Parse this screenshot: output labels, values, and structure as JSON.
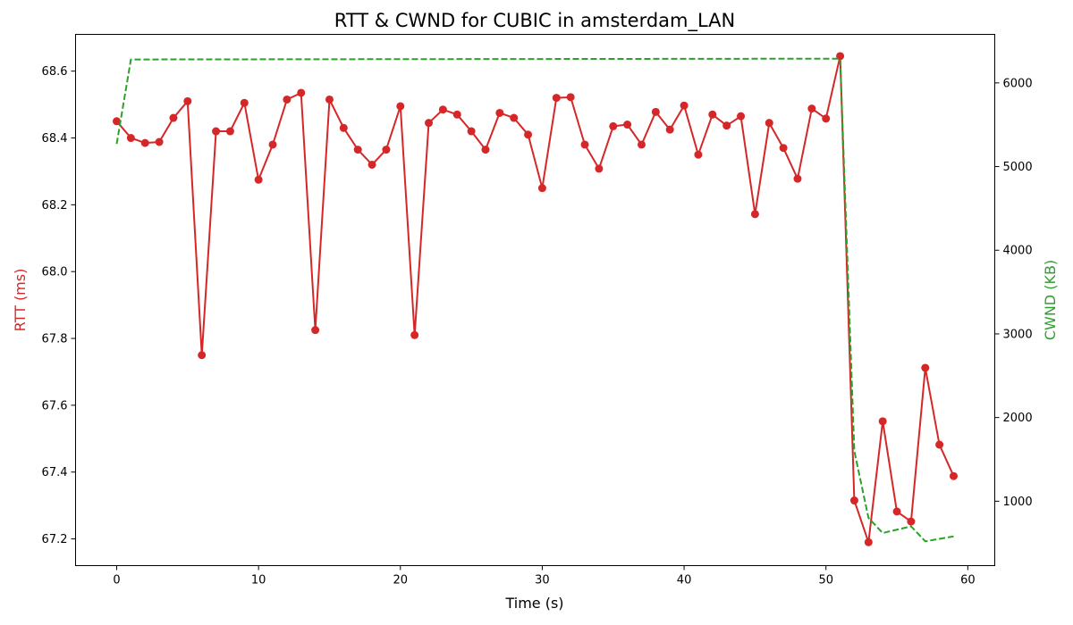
{
  "chart_data": {
    "type": "line",
    "title": "RTT & CWND for CUBIC in amsterdam_LAN",
    "xlabel": "Time (s)",
    "ylabel_left": "RTT (ms)",
    "ylabel_right": "CWND (KB)",
    "xlim": [
      -2.9,
      61.9
    ],
    "ylim_left": [
      67.12,
      68.71
    ],
    "ylim_right": [
      230,
      6580
    ],
    "x_ticks": [
      0,
      10,
      20,
      30,
      40,
      50,
      60
    ],
    "y_left_ticks": [
      67.2,
      67.4,
      67.6,
      67.8,
      68.0,
      68.2,
      68.4,
      68.6
    ],
    "y_right_ticks": [
      1000,
      2000,
      3000,
      4000,
      5000,
      6000
    ],
    "x_tick_labels": [
      "0",
      "10",
      "20",
      "30",
      "40",
      "50",
      "60"
    ],
    "y_left_tick_labels": [
      "67.2",
      "67.4",
      "67.6",
      "67.8",
      "68.0",
      "68.2",
      "68.4",
      "68.6"
    ],
    "y_right_tick_labels": [
      "1000",
      "2000",
      "3000",
      "4000",
      "5000",
      "6000"
    ],
    "grid": false,
    "legend": "none",
    "series": [
      {
        "axis": "left",
        "style": "solid-line-with-circle-markers",
        "color": "#d62728",
        "x": [
          0,
          1,
          2,
          3,
          4,
          5,
          6,
          7,
          8,
          9,
          10,
          11,
          12,
          13,
          14,
          15,
          16,
          17,
          18,
          19,
          20,
          21,
          22,
          23,
          24,
          25,
          26,
          27,
          28,
          29,
          30,
          31,
          32,
          33,
          34,
          35,
          36,
          37,
          38,
          39,
          40,
          41,
          42,
          43,
          44,
          45,
          46,
          47,
          48,
          49,
          50,
          51,
          52,
          53,
          54,
          55,
          56,
          57,
          58,
          59
        ],
        "values": [
          68.45,
          68.4,
          68.385,
          68.388,
          68.46,
          68.51,
          67.75,
          68.42,
          68.42,
          68.505,
          68.275,
          68.38,
          68.515,
          68.535,
          67.825,
          68.515,
          68.43,
          68.365,
          68.32,
          68.365,
          68.495,
          67.81,
          68.445,
          68.485,
          68.47,
          68.42,
          68.365,
          68.475,
          68.46,
          68.41,
          68.25,
          68.52,
          68.522,
          68.38,
          68.308,
          68.435,
          68.44,
          68.38,
          68.478,
          68.425,
          68.497,
          68.35,
          68.47,
          68.437,
          68.465,
          68.172,
          68.445,
          68.37,
          68.278,
          68.488,
          68.458,
          68.645,
          67.315,
          67.19,
          67.552,
          67.282,
          67.252,
          67.712,
          67.482,
          67.388
        ]
      },
      {
        "axis": "right",
        "style": "dashed-line",
        "color": "#2ca02c",
        "x": [
          0,
          1,
          51,
          52,
          53,
          54,
          56,
          57,
          59
        ],
        "values": [
          5270,
          6280,
          6290,
          1600,
          800,
          620,
          700,
          520,
          580
        ]
      }
    ]
  }
}
